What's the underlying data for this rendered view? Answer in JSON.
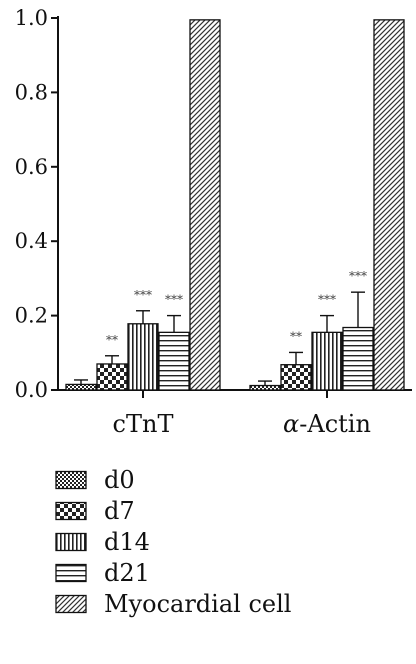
{
  "chart_data": {
    "type": "bar",
    "categories": [
      "cTnT",
      "-Actin"
    ],
    "category_prefix_greek": [
      "",
      "α"
    ],
    "series": [
      {
        "name": "d0",
        "values": [
          0.015,
          0.012
        ],
        "errors": [
          0.012,
          0.012
        ],
        "significance": [
          "",
          ""
        ],
        "pattern": "fine-check"
      },
      {
        "name": "d7",
        "values": [
          0.07,
          0.068
        ],
        "errors": [
          0.022,
          0.033
        ],
        "significance": [
          "**",
          "**"
        ],
        "pattern": "coarse-check"
      },
      {
        "name": "d14",
        "values": [
          0.178,
          0.155
        ],
        "errors": [
          0.035,
          0.045
        ],
        "significance": [
          "***",
          "***"
        ],
        "pattern": "vertical-lines"
      },
      {
        "name": "d21",
        "values": [
          0.155,
          0.168
        ],
        "errors": [
          0.045,
          0.095
        ],
        "significance": [
          "***",
          "***"
        ],
        "pattern": "horizontal-lines"
      },
      {
        "name": "Myocardial cell",
        "values": [
          0.995,
          0.995
        ],
        "errors": [
          0,
          0
        ],
        "significance": [
          "",
          ""
        ],
        "pattern": "diagonal-lines"
      }
    ],
    "y_ticks": [
      "0.0",
      "0.2",
      "0.4",
      "0.6",
      "0.8",
      "1.0"
    ],
    "ylim": [
      0,
      1.0
    ],
    "title": "",
    "xlabel": "",
    "ylabel": "",
    "grid": false,
    "legend_position": "bottom"
  }
}
